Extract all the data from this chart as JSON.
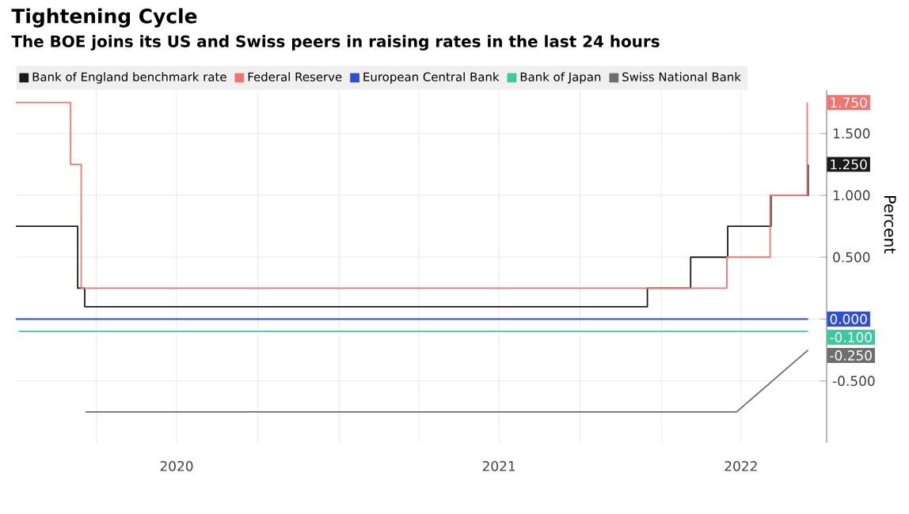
{
  "chart_data": {
    "type": "step",
    "title": "Tightening Cycle",
    "subtitle": "The BOE joins its US and Swiss peers in raising rates in the last 24 hours",
    "ylabel": "Percent",
    "xlim": [
      "2020-01-01",
      "2022-07-07"
    ],
    "xticks": [
      {
        "value": "2020-04-01",
        "label": null
      },
      {
        "value": "2020-07-01",
        "label": "2020"
      },
      {
        "value": "2020-10-01",
        "label": null
      },
      {
        "value": "2021-01-01",
        "label": null
      },
      {
        "value": "2021-04-01",
        "label": null
      },
      {
        "value": "2021-07-01",
        "label": "2021"
      },
      {
        "value": "2021-10-01",
        "label": null
      },
      {
        "value": "2022-01-01",
        "label": null
      },
      {
        "value": "2022-04-01",
        "label": "2022"
      }
    ],
    "ylim": [
      -1.0,
      1.85
    ],
    "yticks": [
      {
        "value": -0.5,
        "label": "-0.500"
      },
      {
        "value": 0,
        "label": null
      },
      {
        "value": 0.5,
        "label": "0.500"
      },
      {
        "value": 1.0,
        "label": "1.000"
      },
      {
        "value": 1.5,
        "label": "1.500"
      }
    ],
    "grid": true,
    "legend": "top",
    "series": [
      {
        "name": "Bank of England benchmark rate",
        "color": "#1a1a1a",
        "x": [
          "2020-01-01",
          "2020-03-11",
          "2020-03-19",
          "2021-12-16",
          "2022-02-03",
          "2022-03-17",
          "2022-05-05",
          "2022-06-16"
        ],
        "values": [
          0.75,
          0.25,
          0.1,
          0.25,
          0.5,
          0.75,
          1.0,
          1.25
        ],
        "value_labels": [
          null,
          null,
          null,
          null,
          null,
          null,
          null,
          "1.250"
        ]
      },
      {
        "name": "Federal Reserve",
        "color": "#f07470",
        "x": [
          "2020-01-01",
          "2020-03-03",
          "2020-03-15",
          "2022-03-16",
          "2022-05-04",
          "2022-06-15"
        ],
        "values": [
          1.75,
          1.25,
          0.25,
          0.5,
          1.0,
          1.75
        ],
        "value_labels": [
          null,
          null,
          null,
          null,
          null,
          "1.750"
        ]
      },
      {
        "name": "European Central Bank",
        "color": "#2d4fd6",
        "x": [
          "2020-01-01",
          "2022-06-16"
        ],
        "values": [
          0,
          0
        ],
        "value_labels": [
          null,
          "0.000"
        ]
      },
      {
        "name": "Bank of Japan",
        "color": "#3cc9a0",
        "x": [
          "2020-01-04",
          "2022-06-16"
        ],
        "values": [
          -0.1,
          -0.1
        ],
        "value_labels": [
          null,
          "-0.100"
        ]
      },
      {
        "name": "Swiss National Bank",
        "color": "#6e6e6e",
        "type": "line",
        "x": [
          "2020-03-20",
          "2022-03-27",
          "2022-06-16"
        ],
        "values": [
          -0.75,
          -0.75,
          -0.25
        ],
        "value_labels": [
          null,
          null,
          "-0.250"
        ]
      }
    ]
  }
}
